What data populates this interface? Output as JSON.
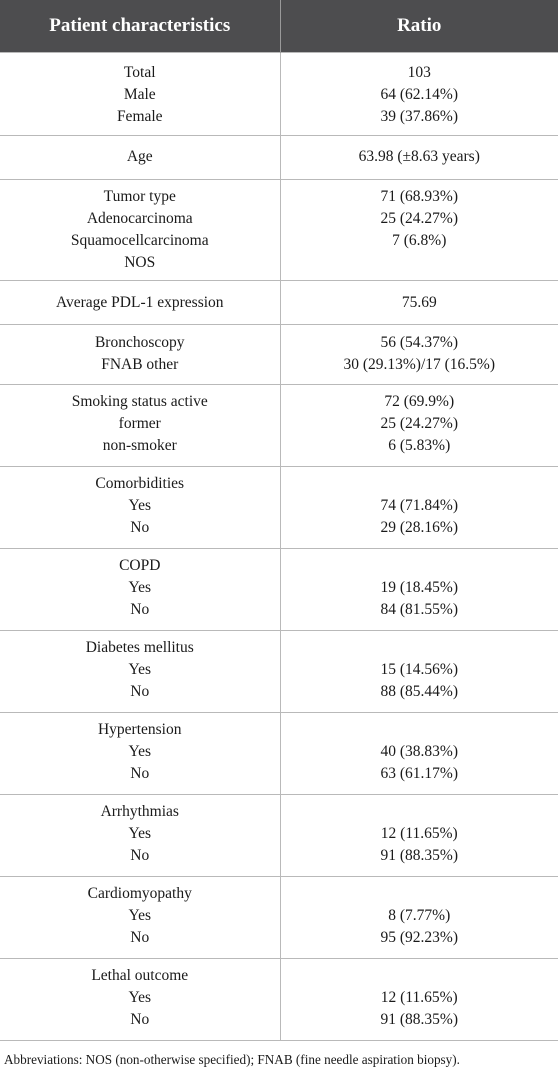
{
  "header": {
    "col1": "Patient characteristics",
    "col2": "Ratio"
  },
  "rows": [
    {
      "left": [
        "Total",
        "Male",
        "Female"
      ],
      "right": [
        "103",
        "64 (62.14%)",
        "39 (37.86%)"
      ]
    },
    {
      "left": [
        "Age"
      ],
      "right": [
        "63.98 (±8.63 years)"
      ]
    },
    {
      "left": [
        "Tumor type",
        "Adenocarcinoma",
        "Squamocellcarcinoma",
        "NOS"
      ],
      "right": [
        "71 (68.93%)",
        "25 (24.27%)",
        "7 (6.8%)",
        ""
      ]
    },
    {
      "left": [
        "Average PDL-1 expression"
      ],
      "right": [
        "75.69"
      ]
    },
    {
      "left": [
        "Bronchoscopy",
        "FNAB other"
      ],
      "right": [
        "56 (54.37%)",
        "30 (29.13%)/17 (16.5%)"
      ]
    },
    {
      "left": [
        "Smoking status active",
        "former",
        "non-smoker"
      ],
      "right": [
        "72 (69.9%)",
        "25 (24.27%)",
        "6 (5.83%)"
      ]
    },
    {
      "left": [
        "Comorbidities",
        "Yes",
        "No"
      ],
      "right": [
        "",
        "74 (71.84%)",
        "29 (28.16%)"
      ]
    },
    {
      "left": [
        "COPD",
        "Yes",
        "No"
      ],
      "right": [
        "",
        "19 (18.45%)",
        "84 (81.55%)"
      ]
    },
    {
      "left": [
        "Diabetes mellitus",
        "Yes",
        "No"
      ],
      "right": [
        "",
        "15 (14.56%)",
        "88 (85.44%)"
      ]
    },
    {
      "left": [
        "Hypertension",
        "Yes",
        "No"
      ],
      "right": [
        "",
        "40 (38.83%)",
        "63 (61.17%)"
      ]
    },
    {
      "left": [
        "Arrhythmias",
        "Yes",
        "No"
      ],
      "right": [
        "",
        "12 (11.65%)",
        "91 (88.35%)"
      ]
    },
    {
      "left": [
        "Cardiomyopathy",
        "Yes",
        "No"
      ],
      "right": [
        "",
        "8 (7.77%)",
        "95 (92.23%)"
      ]
    },
    {
      "left": [
        "Lethal outcome",
        "Yes",
        "No"
      ],
      "right": [
        "",
        "12 (11.65%)",
        "91 (88.35%)"
      ]
    }
  ],
  "footnote": "Abbreviations: NOS (non-otherwise specified); FNAB (fine needle aspiration biopsy)."
}
